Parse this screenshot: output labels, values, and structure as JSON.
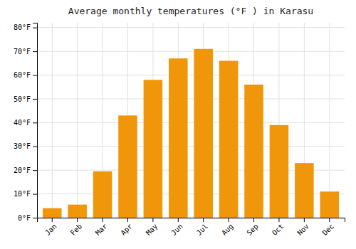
{
  "chart_data": {
    "type": "bar",
    "title": "Average monthly temperatures (°F ) in Karasu",
    "categories": [
      "Jan",
      "Feb",
      "Mar",
      "Apr",
      "May",
      "Jun",
      "Jul",
      "Aug",
      "Sep",
      "Oct",
      "Nov",
      "Dec"
    ],
    "values": [
      4,
      5.5,
      19.5,
      43,
      58,
      67,
      71,
      66,
      56,
      39,
      23,
      11
    ],
    "color": "#F0960A",
    "ylim": [
      0,
      82
    ],
    "yticks": [
      {
        "value": 0,
        "label": "0°F"
      },
      {
        "value": 10,
        "label": "10°F"
      },
      {
        "value": 20,
        "label": "20°F"
      },
      {
        "value": 30,
        "label": "30°F"
      },
      {
        "value": 40,
        "label": "40°F"
      },
      {
        "value": 50,
        "label": "50°F"
      },
      {
        "value": 60,
        "label": "60°F"
      },
      {
        "value": 70,
        "label": "70°F"
      },
      {
        "value": 80,
        "label": "80°F"
      }
    ],
    "grid": true
  }
}
